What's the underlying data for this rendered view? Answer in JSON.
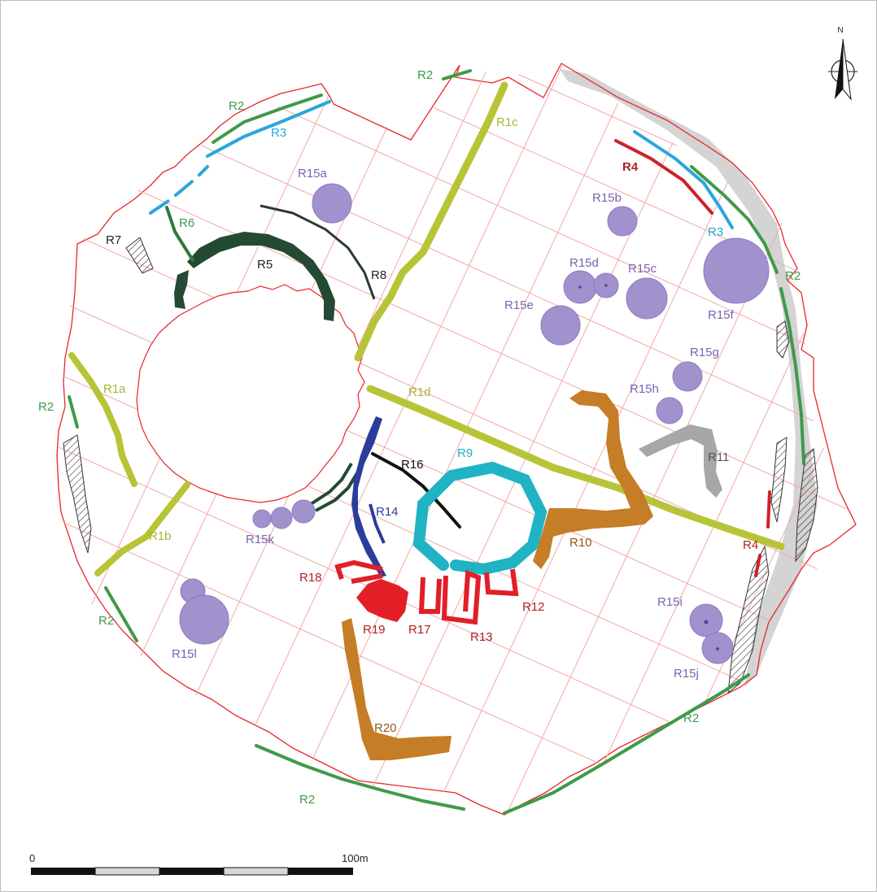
{
  "north_label": "N",
  "scale": {
    "start": "0",
    "end": "100m"
  },
  "colors": {
    "boundary": "#e8262b",
    "grid": "#f2a0a0",
    "R1": "#b8c437",
    "R2": "#3f9a48",
    "R3": "#2aa6dc",
    "R4": "#cc2229",
    "R5": "#244a33",
    "R9": "#1fb3c4",
    "R10": "#c57d26",
    "R11": "#a7a7a7",
    "R14": "#2b3d9b",
    "R15": "#a191cd",
    "R15_text": "#7a63b3",
    "red_features": "#e21f26",
    "R20": "#c57d26",
    "grey_band": "#d3d3d3"
  },
  "labels": {
    "R1a": "R1a",
    "R1b": "R1b",
    "R1c": "R1c",
    "R1d": "R1d",
    "R2": "R2",
    "R3": "R3",
    "R4": "R4",
    "R5": "R5",
    "R6": "R6",
    "R7": "R7",
    "R8": "R8",
    "R9": "R9",
    "R10": "R10",
    "R11": "R11",
    "R12": "R12",
    "R13": "R13",
    "R14": "R14",
    "R15a": "R15a",
    "R15b": "R15b",
    "R15c": "R15c",
    "R15d": "R15d",
    "R15e": "R15e",
    "R15f": "R15f",
    "R15g": "R15g",
    "R15h": "R15h",
    "R15i": "R15i",
    "R15j": "R15j",
    "R15k": "R15k",
    "R15l": "R15l",
    "R16": "R16",
    "R17": "R17",
    "R18": "R18",
    "R19": "R19",
    "R20": "R20"
  }
}
